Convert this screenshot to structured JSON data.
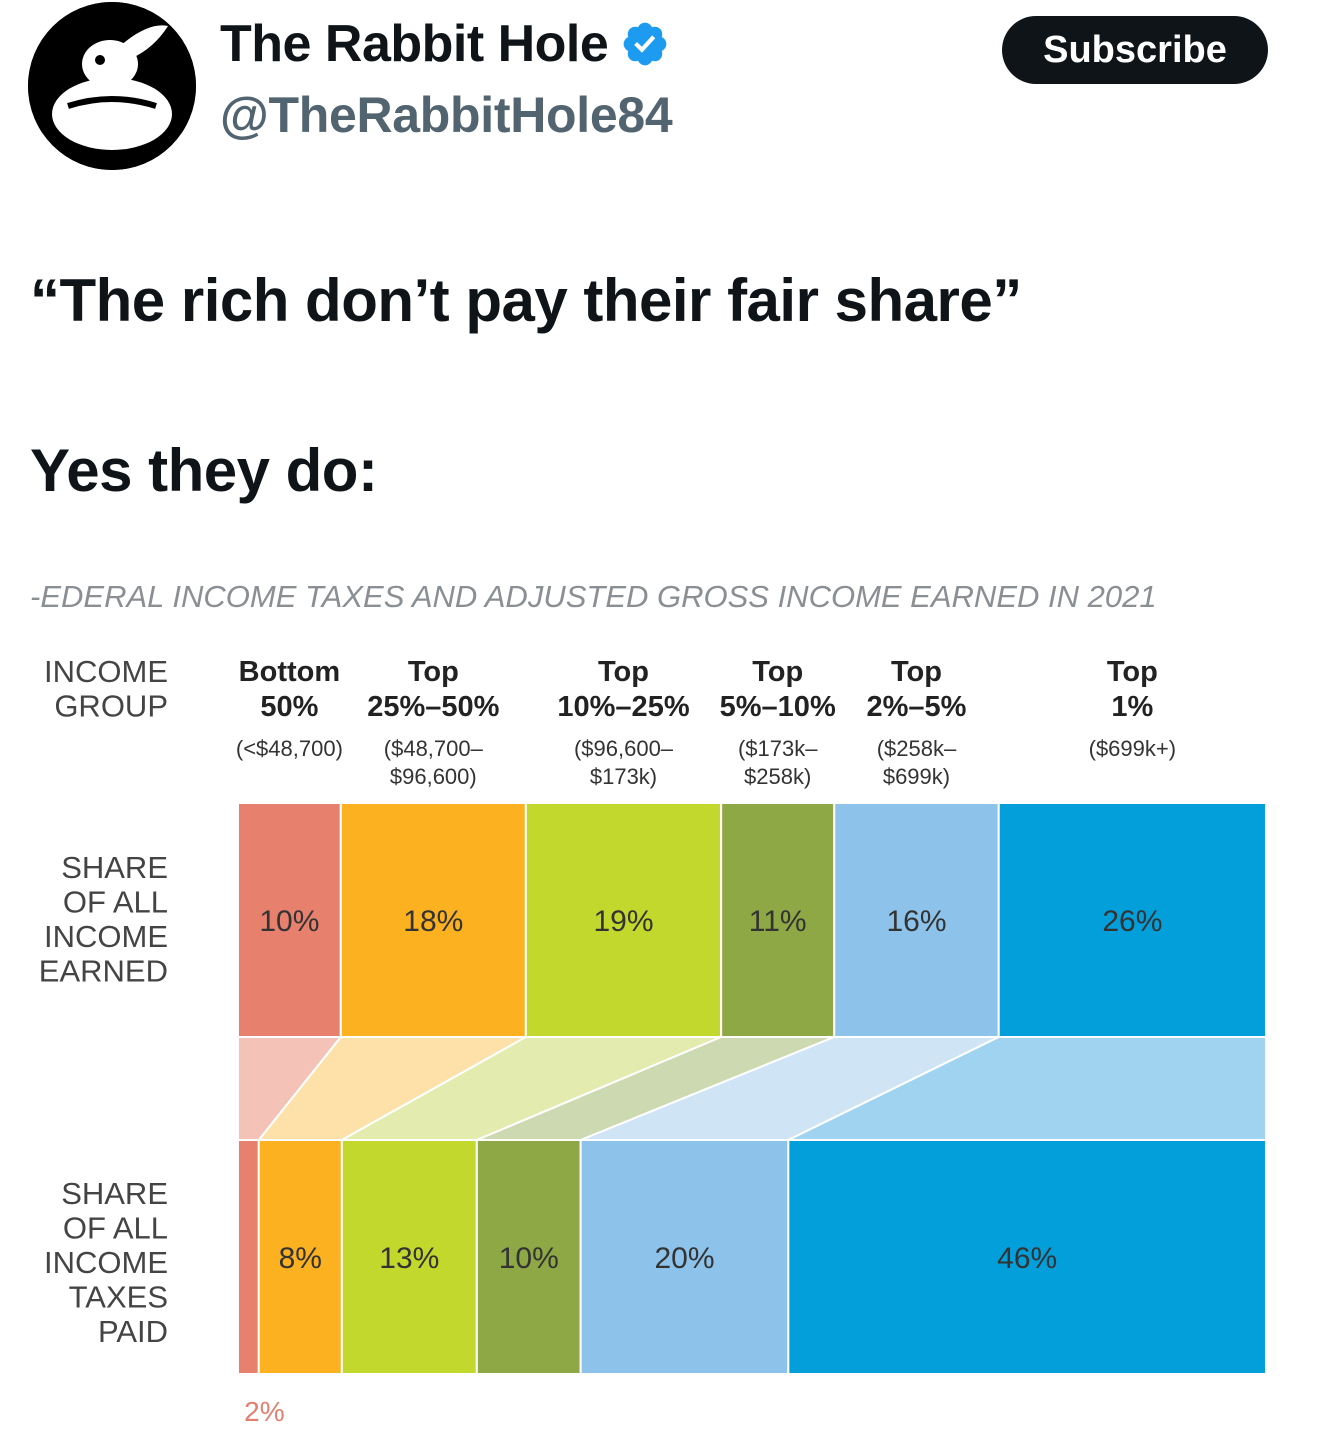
{
  "header": {
    "display_name": "The Rabbit Hole",
    "handle": "@TheRabbitHole84",
    "subscribe_label": "Subscribe",
    "verified_icon": "verified-badge-icon",
    "avatar_icon": "rabbit-logo-icon",
    "accent_color": "#1d9bf0"
  },
  "tweet": {
    "line1": "“The rich don’t pay their fair share”",
    "line2": "Yes they do:"
  },
  "chart_data": {
    "type": "bar",
    "title": "-EDERAL INCOME TAXES AND ADJUSTED GROSS INCOME EARNED IN 2021",
    "row_labels": {
      "group": [
        "INCOME",
        "GROUP"
      ],
      "income": [
        "SHARE",
        "OF ALL",
        "INCOME",
        "EARNED"
      ],
      "taxes": [
        "SHARE",
        "OF ALL",
        "INCOME",
        "TAXES",
        "PAID"
      ]
    },
    "categories": [
      {
        "head": [
          "Bottom",
          "50%"
        ],
        "range": [
          "(<$48,700)"
        ]
      },
      {
        "head": [
          "Top",
          "25%–50%"
        ],
        "range": [
          "($48,700–",
          "$96,600)"
        ]
      },
      {
        "head": [
          "Top",
          "10%–25%"
        ],
        "range": [
          "($96,600–",
          "$173k)"
        ]
      },
      {
        "head": [
          "Top",
          "5%–10%"
        ],
        "range": [
          "($173k–",
          "$258k)"
        ]
      },
      {
        "head": [
          "Top",
          "2%–5%"
        ],
        "range": [
          "($258k–",
          "$699k)"
        ]
      },
      {
        "head": [
          "Top",
          "1%"
        ],
        "range": [
          "($699k+)"
        ]
      }
    ],
    "series": [
      {
        "name": "SHARE OF ALL INCOME EARNED",
        "values": [
          10,
          18,
          19,
          11,
          16,
          26
        ],
        "labels": [
          "10%",
          "18%",
          "19%",
          "11%",
          "16%",
          "26%"
        ]
      },
      {
        "name": "SHARE OF ALL INCOME TAXES PAID",
        "values": [
          2,
          8,
          13,
          10,
          20,
          46
        ],
        "labels": [
          "2%",
          "8%",
          "13%",
          "10%",
          "20%",
          "46%"
        ]
      }
    ],
    "colors": [
      "#e8806e",
      "#fbb120",
      "#c3d82c",
      "#8ea845",
      "#8dc3ea",
      "#039fda"
    ],
    "light_colors": [
      "#f5c2b7",
      "#fde1a8",
      "#e3ecae",
      "#cdd9b0",
      "#cfe5f6",
      "#9fd3ef"
    ],
    "ylim": [
      0,
      100
    ]
  }
}
